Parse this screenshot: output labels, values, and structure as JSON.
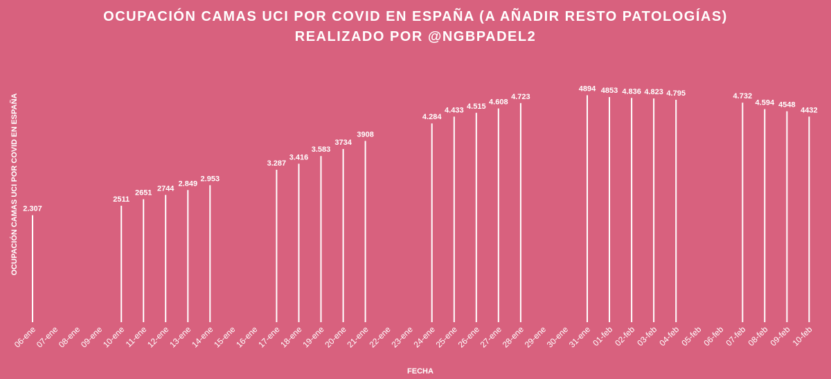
{
  "chart_data": {
    "type": "bar",
    "title_lines": [
      "OCUPACIÓN CAMAS UCI POR COVID EN ESPAÑA (A AÑADIR RESTO PATOLOGÍAS)",
      "REALIZADO POR @NGBPADEL2"
    ],
    "xlabel": "FECHA",
    "ylabel": "OCUPACIÓN CAMAS UCI POR COVID EN ESPAÑA",
    "ylim": [
      0,
      5500
    ],
    "grid": false,
    "bar_color": "#ffffff",
    "categories": [
      "06-ene",
      "07-ene",
      "08-ene",
      "09-ene",
      "10-ene",
      "11-ene",
      "12-ene",
      "13-ene",
      "14-ene",
      "15-ene",
      "16-ene",
      "17-ene",
      "18-ene",
      "19-ene",
      "20-ene",
      "21-ene",
      "22-ene",
      "23-ene",
      "24-ene",
      "25-ene",
      "26-ene",
      "27-ene",
      "28-ene",
      "29-ene",
      "30-ene",
      "31-ene",
      "01-feb",
      "02-feb",
      "03-feb",
      "04-feb",
      "05-feb",
      "06-feb",
      "07-feb",
      "08-feb",
      "09-feb",
      "10-feb"
    ],
    "values": [
      2307,
      null,
      null,
      null,
      2511,
      2651,
      2744,
      2849,
      2953,
      null,
      null,
      3287,
      3416,
      3583,
      3734,
      3908,
      null,
      null,
      4284,
      4433,
      4515,
      4608,
      4723,
      null,
      null,
      4894,
      4853,
      4836,
      4823,
      4795,
      null,
      null,
      4732,
      4594,
      4548,
      4432
    ],
    "data_labels": [
      "2.307",
      "",
      "",
      "",
      "2511",
      "2651",
      "2744",
      "2.849",
      "2.953",
      "",
      "",
      "3.287",
      "3.416",
      "3.583",
      "3734",
      "3908",
      "",
      "",
      "4.284",
      "4.433",
      "4.515",
      "4.608",
      "4.723",
      "",
      "",
      "4894",
      "4853",
      "4.836",
      "4.823",
      "4.795",
      "",
      "",
      "4.732",
      "4.594",
      "4548",
      "4432"
    ]
  },
  "colors": {
    "background": "#d8617e",
    "foreground": "#ffffff"
  }
}
